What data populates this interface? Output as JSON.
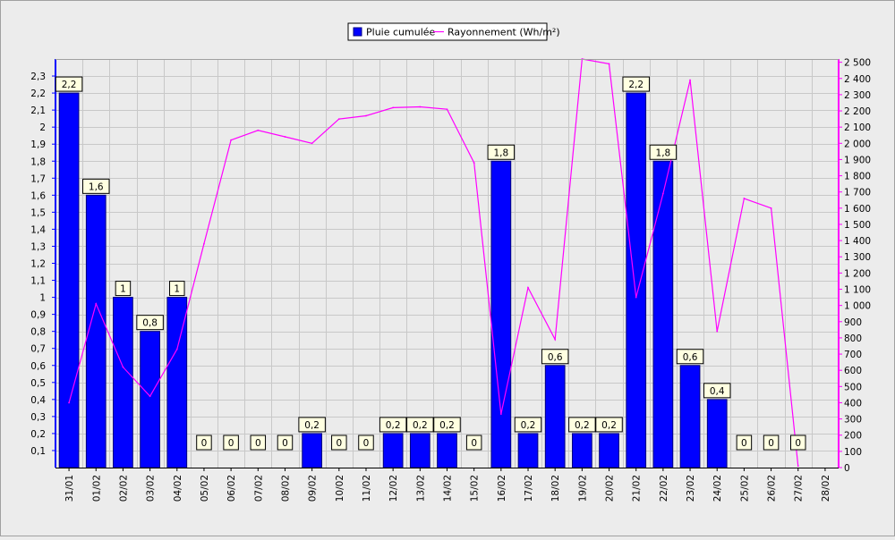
{
  "colors": {
    "background": "#ececec",
    "plot_bg": "#ebebeb",
    "grid": "#c8c8c8",
    "bar": "#0000ff",
    "bar_edge": "#000080",
    "line": "#ff00ff",
    "left_axis": "#0000ff",
    "right_axis": "#ff00ff",
    "label_bg": "#ffffe1"
  },
  "legend": {
    "bar_label": "Pluie cumulée",
    "line_label": "Rayonnement (Wh/m²)"
  },
  "chart_data": {
    "type": "bar",
    "categories": [
      "31/01",
      "01/02",
      "02/02",
      "03/02",
      "04/02",
      "05/02",
      "06/02",
      "07/02",
      "08/02",
      "09/02",
      "10/02",
      "11/02",
      "12/02",
      "13/02",
      "14/02",
      "15/02",
      "16/02",
      "17/02",
      "18/02",
      "19/02",
      "20/02",
      "21/02",
      "22/02",
      "23/02",
      "24/02",
      "25/02",
      "26/02",
      "27/02",
      "28/02"
    ],
    "series": [
      {
        "name": "Pluie cumulée",
        "type": "bar",
        "axis": "left",
        "values": [
          2.2,
          1.6,
          1,
          0.8,
          1,
          0,
          0,
          0,
          0,
          0.2,
          0,
          0,
          0.2,
          0.2,
          0.2,
          0,
          1.8,
          0.2,
          0.6,
          0.2,
          0.2,
          2.2,
          1.8,
          0.6,
          0.4,
          0,
          0,
          0,
          null
        ],
        "data_labels": [
          "2,2",
          "1,6",
          "1",
          "0,8",
          "1",
          "0",
          "0",
          "0",
          "0",
          "0,2",
          "0",
          "0",
          "0,2",
          "0,2",
          "0,2",
          "0",
          "1,8",
          "0,2",
          "0,6",
          "0,2",
          "0,2",
          "2,2",
          "1,8",
          "0,6",
          "0,4",
          "0",
          "0",
          "0",
          ""
        ]
      },
      {
        "name": "Rayonnement (Wh/m²)",
        "type": "line",
        "axis": "right",
        "values": [
          400,
          1010,
          620,
          440,
          730,
          1380,
          2020,
          2080,
          2040,
          2000,
          2150,
          2170,
          2220,
          2225,
          2210,
          1880,
          330,
          1110,
          790,
          2520,
          2490,
          1050,
          1690,
          2390,
          840,
          1660,
          1600,
          10,
          null
        ]
      }
    ],
    "y_left": {
      "min": 0,
      "max": 2.4,
      "ticks": [
        0.1,
        0.2,
        0.3,
        0.4,
        0.5,
        0.6,
        0.7,
        0.8,
        0.9,
        1,
        1.1,
        1.2,
        1.3,
        1.4,
        1.5,
        1.6,
        1.7,
        1.8,
        1.9,
        2,
        2.1,
        2.2,
        2.3
      ],
      "tick_labels": [
        "0,1",
        "0,2",
        "0,3",
        "0,4",
        "0,5",
        "0,6",
        "0,7",
        "0,8",
        "0,9",
        "1",
        "1,1",
        "1,2",
        "1,3",
        "1,4",
        "1,5",
        "1,6",
        "1,7",
        "1,8",
        "1,9",
        "2",
        "2,1",
        "2,2",
        "2,3"
      ]
    },
    "y_right": {
      "min": 0,
      "max": 2520,
      "ticks": [
        0,
        100,
        200,
        300,
        400,
        500,
        600,
        700,
        800,
        900,
        1000,
        1100,
        1200,
        1300,
        1400,
        1500,
        1600,
        1700,
        1800,
        1900,
        2000,
        2100,
        2200,
        2300,
        2400,
        2500
      ],
      "tick_labels": [
        "0",
        "100",
        "200",
        "300",
        "400",
        "500",
        "600",
        "700",
        "800",
        "900",
        "1 000",
        "1 100",
        "1 200",
        "1 300",
        "1 400",
        "1 500",
        "1 600",
        "1 700",
        "1 800",
        "1 900",
        "2 000",
        "2 100",
        "2 200",
        "2 300",
        "2 400",
        "2 500"
      ]
    },
    "grid": true,
    "legend_position": "top-center"
  }
}
